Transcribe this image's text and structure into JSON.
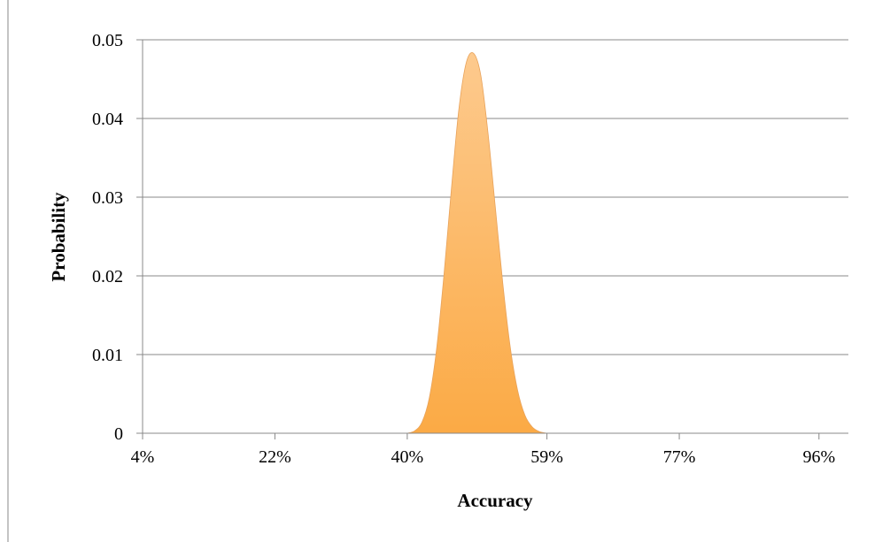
{
  "chart_data": {
    "type": "area",
    "title": "",
    "xlabel": "Accuracy",
    "ylabel": "Probability",
    "xlim": [
      0.04,
      1.0
    ],
    "ylim": [
      0,
      0.05
    ],
    "x_ticks": [
      0.04,
      0.22,
      0.4,
      0.59,
      0.77,
      0.96
    ],
    "x_tick_labels": [
      "4%",
      "22%",
      "40%",
      "59%",
      "77%",
      "96%"
    ],
    "y_ticks": [
      0,
      0.01,
      0.02,
      0.03,
      0.04,
      0.05
    ],
    "y_tick_labels": [
      "0",
      "0.01",
      "0.02",
      "0.03",
      "0.04",
      "0.05"
    ],
    "grid": "horizontal",
    "legend": "none",
    "series": [
      {
        "x": [
          0.4,
          0.41,
          0.42,
          0.43,
          0.44,
          0.45,
          0.46,
          0.47,
          0.48,
          0.49,
          0.5,
          0.51,
          0.52,
          0.53,
          0.54,
          0.55,
          0.56,
          0.57,
          0.58,
          0.59
        ],
        "y": [
          0.0,
          0.0003,
          0.0014,
          0.0045,
          0.0108,
          0.0202,
          0.031,
          0.041,
          0.047,
          0.0483,
          0.0455,
          0.038,
          0.0285,
          0.019,
          0.011,
          0.0055,
          0.0023,
          0.0008,
          0.0002,
          0.0
        ]
      }
    ],
    "colors": {
      "fill_top": "#fdca8e",
      "fill_bottom": "#fbaa45",
      "grid": "#888888",
      "axis": "#888888"
    }
  }
}
